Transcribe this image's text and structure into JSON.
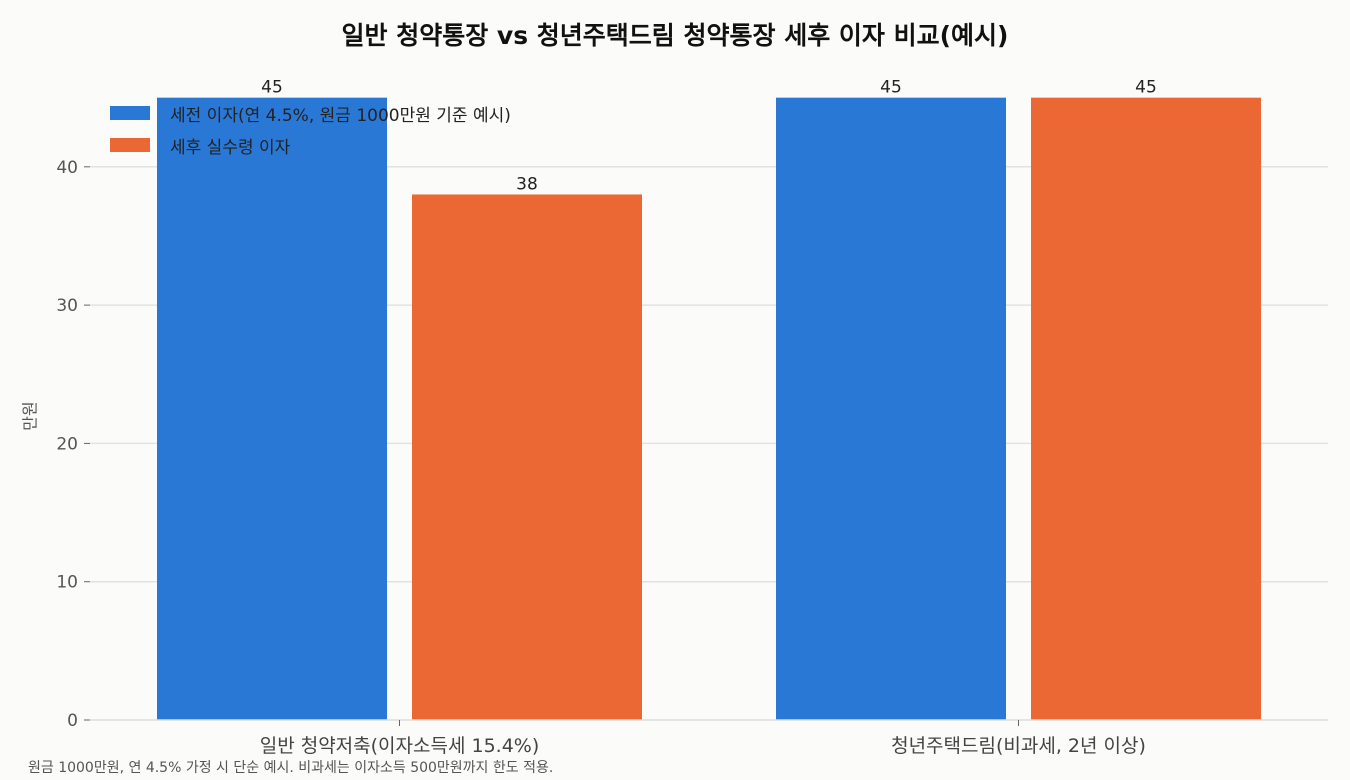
{
  "chart_data": {
    "type": "bar",
    "title": "일반 청약통장 vs 청년주택드림 청약통장 세후 이자 비교(예시)",
    "ylabel": "만원",
    "xlabel": "",
    "categories": [
      "일반 청약저축(이자소득세 15.4%)",
      "청년주택드림(비과세, 2년 이상)"
    ],
    "series": [
      {
        "name": "세전 이자(연 4.5%, 원금 1000만원 기준 예시)",
        "color": "#2a78d6",
        "values": [
          45,
          45
        ]
      },
      {
        "name": "세후 실수령 이자",
        "color": "#eb6834",
        "values": [
          38,
          45
        ]
      }
    ],
    "ylim": [
      0,
      47
    ],
    "yticks": [
      0,
      10,
      20,
      30,
      40
    ],
    "grid": "horizontal",
    "legend": "top-left",
    "footnote": "원금 1000만원, 연 4.5% 가정 시 단순 예시. 비과세는 이자소득 500만원까지 한도 적용."
  }
}
